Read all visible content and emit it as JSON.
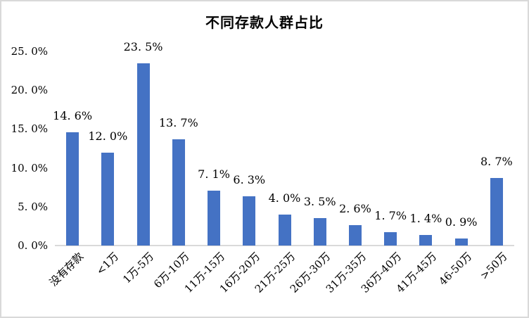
{
  "chart_data": {
    "type": "bar",
    "title": "不同存款人群占比",
    "categories": [
      "没有存款",
      "<1万",
      "1万-5万",
      "6万-10万",
      "11万-15万",
      "16万-20万",
      "21万-25万",
      "26万-30万",
      "31万-35万",
      "36万-40万",
      "41万-45万",
      "46-50万",
      ">50万"
    ],
    "values": [
      14.6,
      12.0,
      23.5,
      13.7,
      7.1,
      6.3,
      4.0,
      3.5,
      2.6,
      1.7,
      1.4,
      0.9,
      8.7
    ],
    "data_labels": [
      "14. 6%",
      "12. 0%",
      "23. 5%",
      "13. 7%",
      "7. 1%",
      "6. 3%",
      "4. 0%",
      "3. 5%",
      "2. 6%",
      "1. 7%",
      "1. 4%",
      "0. 9%",
      "8. 7%"
    ],
    "xlabel": "",
    "ylabel": "",
    "y_axis": {
      "tick_labels": [
        "0. 0%",
        "5. 0%",
        "10. 0%",
        "15. 0%",
        "20. 0%",
        "25. 0%"
      ],
      "tick_values": [
        0,
        5,
        10,
        15,
        20,
        25
      ],
      "min": 0,
      "max": 25
    },
    "grid": false,
    "legend": false,
    "colors": {
      "bar": "#4472C4",
      "axis_line": "#D9D9D9",
      "text": "#000000",
      "background": "#FFFFFF",
      "chart_border": "#D9D9D9"
    }
  }
}
